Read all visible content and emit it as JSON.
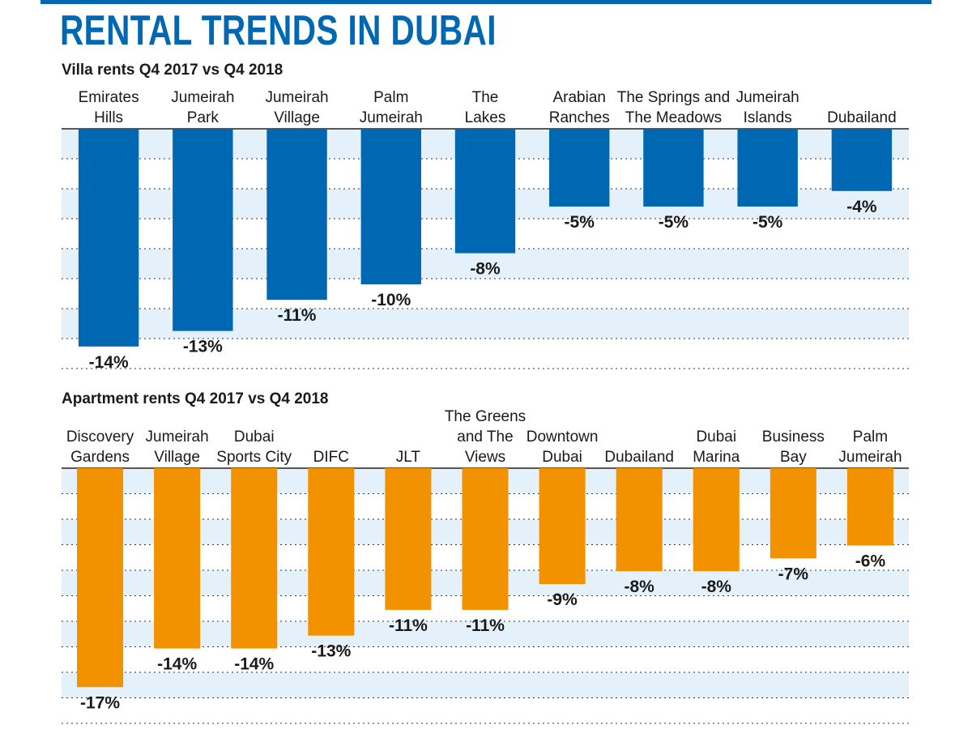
{
  "title": "RENTAL TRENDS IN DUBAI",
  "colors": {
    "villa": "#0067b2",
    "apartment": "#f39200",
    "band": "#e4f1fb",
    "title": "#0067b2"
  },
  "chart_data": [
    {
      "type": "bar",
      "title": "Villa rents Q4 2017 vs Q4 2018",
      "categories": [
        [
          "Emirates",
          "Hills"
        ],
        [
          "Jumeirah",
          "Park"
        ],
        [
          "Jumeirah",
          "Village"
        ],
        [
          "Palm",
          "Jumeirah"
        ],
        [
          "The",
          "Lakes"
        ],
        [
          "Arabian",
          "Ranches"
        ],
        [
          "The Springs and",
          "The Meadows"
        ],
        [
          "Jumeirah",
          "Islands"
        ],
        [
          "Dubailand"
        ]
      ],
      "values": [
        -14,
        -13,
        -11,
        -10,
        -8,
        -5,
        -5,
        -5,
        -4
      ],
      "labels": [
        "-14%",
        "-13%",
        "-11%",
        "-10%",
        "-8%",
        "-5%",
        "-5%",
        "-5%",
        "-4%"
      ],
      "ylim": [
        -16,
        0
      ],
      "grid": true
    },
    {
      "type": "bar",
      "title": "Apartment rents Q4 2017 vs Q4 2018",
      "categories": [
        [
          "Discovery",
          "Gardens"
        ],
        [
          "Jumeirah",
          "Village"
        ],
        [
          "Dubai",
          "Sports City"
        ],
        [
          "DIFC"
        ],
        [
          "JLT"
        ],
        [
          "The Greens",
          "and The",
          "Views"
        ],
        [
          "Downtown",
          "Dubai"
        ],
        [
          "Dubailand"
        ],
        [
          "Dubai",
          "Marina"
        ],
        [
          "Business",
          "Bay"
        ],
        [
          "Palm",
          "Jumeirah"
        ]
      ],
      "values": [
        -17,
        -14,
        -14,
        -13,
        -11,
        -11,
        -9,
        -8,
        -8,
        -7,
        -6
      ],
      "labels": [
        "-17%",
        "-14%",
        "-14%",
        "-13%",
        "-11%",
        "-11%",
        "-9%",
        "-8%",
        "-8%",
        "-7%",
        "-6%"
      ],
      "ylim": [
        -18,
        0
      ],
      "grid": true
    }
  ]
}
